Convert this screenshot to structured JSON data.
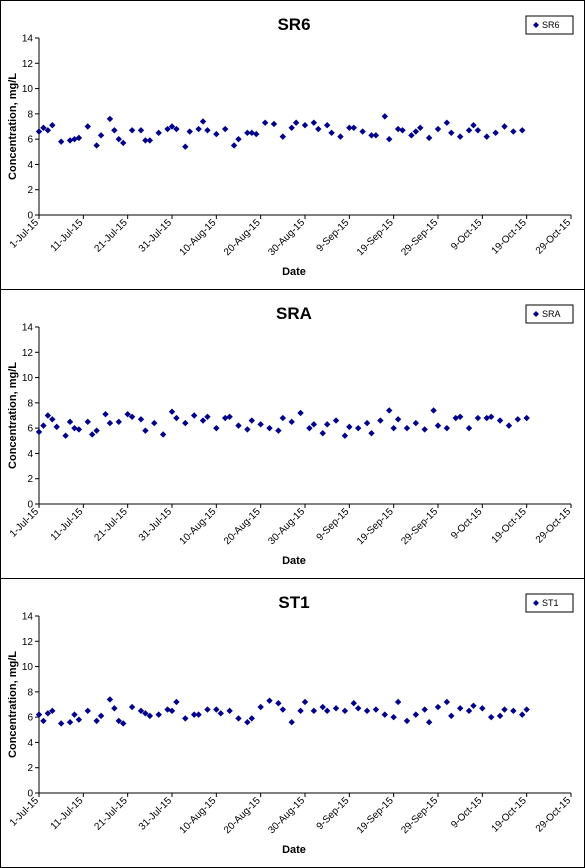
{
  "chart_data": [
    {
      "type": "scatter",
      "title": "SR6",
      "xlabel": "Date",
      "ylabel": "Concentration, mg/L",
      "ylim": [
        0,
        14
      ],
      "yticks": [
        "0",
        "2",
        "4",
        "6",
        "8",
        "10",
        "12",
        "14"
      ],
      "xlim": [
        "2015-07-01",
        "2015-10-29"
      ],
      "xticks": [
        "1-Jul-15",
        "11-Jul-15",
        "21-Jul-15",
        "31-Jul-15",
        "10-Aug-15",
        "20-Aug-15",
        "30-Aug-15",
        "9-Sep-15",
        "19-Sep-15",
        "29-Sep-15",
        "9-Oct-15",
        "19-Oct-15",
        "29-Oct-15"
      ],
      "grid": false,
      "legend_position": "top-right",
      "marker_color": "#00008B",
      "series": [
        {
          "name": "SR6",
          "x": [
            "2015-07-01",
            "2015-07-02",
            "2015-07-03",
            "2015-07-04",
            "2015-07-06",
            "2015-07-08",
            "2015-07-09",
            "2015-07-10",
            "2015-07-12",
            "2015-07-14",
            "2015-07-15",
            "2015-07-17",
            "2015-07-18",
            "2015-07-19",
            "2015-07-20",
            "2015-07-22",
            "2015-07-24",
            "2015-07-25",
            "2015-07-26",
            "2015-07-28",
            "2015-07-30",
            "2015-07-31",
            "2015-08-01",
            "2015-08-03",
            "2015-08-04",
            "2015-08-06",
            "2015-08-07",
            "2015-08-08",
            "2015-08-10",
            "2015-08-12",
            "2015-08-14",
            "2015-08-15",
            "2015-08-17",
            "2015-08-18",
            "2015-08-19",
            "2015-08-21",
            "2015-08-23",
            "2015-08-25",
            "2015-08-27",
            "2015-08-28",
            "2015-08-30",
            "2015-09-01",
            "2015-09-02",
            "2015-09-04",
            "2015-09-05",
            "2015-09-07",
            "2015-09-09",
            "2015-09-10",
            "2015-09-12",
            "2015-09-14",
            "2015-09-15",
            "2015-09-17",
            "2015-09-18",
            "2015-09-20",
            "2015-09-21",
            "2015-09-23",
            "2015-09-24",
            "2015-09-25",
            "2015-09-27",
            "2015-09-29",
            "2015-10-01",
            "2015-10-02",
            "2015-10-04",
            "2015-10-06",
            "2015-10-07",
            "2015-10-08",
            "2015-10-10",
            "2015-10-12",
            "2015-10-14",
            "2015-10-16",
            "2015-10-18"
          ],
          "y": [
            6.6,
            6.9,
            6.7,
            7.1,
            5.8,
            5.9,
            6.0,
            6.1,
            7.0,
            5.5,
            6.3,
            7.6,
            6.7,
            6.0,
            5.7,
            6.7,
            6.7,
            5.9,
            5.9,
            6.5,
            6.8,
            7.0,
            6.8,
            5.4,
            6.6,
            6.8,
            7.4,
            6.7,
            6.4,
            6.8,
            5.5,
            6.0,
            6.5,
            6.5,
            6.4,
            7.3,
            7.2,
            6.2,
            6.9,
            7.3,
            7.1,
            7.3,
            6.8,
            7.1,
            6.5,
            6.2,
            6.9,
            6.9,
            6.6,
            6.3,
            6.3,
            7.8,
            6.0,
            6.8,
            6.7,
            6.3,
            6.6,
            6.9,
            6.1,
            6.8,
            7.3,
            6.5,
            6.2,
            6.7,
            7.1,
            6.7,
            6.2,
            6.5,
            7.0,
            6.6,
            6.7
          ]
        }
      ]
    },
    {
      "type": "scatter",
      "title": "SRA",
      "xlabel": "Date",
      "ylabel": "Concentration, mg/L",
      "ylim": [
        0,
        14
      ],
      "yticks": [
        "0",
        "2",
        "4",
        "6",
        "8",
        "10",
        "12",
        "14"
      ],
      "xlim": [
        "2015-07-01",
        "2015-10-29"
      ],
      "xticks": [
        "1-Jul-15",
        "11-Jul-15",
        "21-Jul-15",
        "31-Jul-15",
        "10-Aug-15",
        "20-Aug-15",
        "30-Aug-15",
        "9-Sep-15",
        "19-Sep-15",
        "29-Sep-15",
        "9-Oct-15",
        "19-Oct-15",
        "29-Oct-15"
      ],
      "grid": false,
      "legend_position": "top-right",
      "marker_color": "#00008B",
      "series": [
        {
          "name": "SRA",
          "x": [
            "2015-07-01",
            "2015-07-02",
            "2015-07-03",
            "2015-07-04",
            "2015-07-05",
            "2015-07-07",
            "2015-07-08",
            "2015-07-09",
            "2015-07-10",
            "2015-07-12",
            "2015-07-13",
            "2015-07-14",
            "2015-07-16",
            "2015-07-17",
            "2015-07-19",
            "2015-07-21",
            "2015-07-22",
            "2015-07-24",
            "2015-07-25",
            "2015-07-27",
            "2015-07-29",
            "2015-07-31",
            "2015-08-01",
            "2015-08-03",
            "2015-08-05",
            "2015-08-07",
            "2015-08-08",
            "2015-08-10",
            "2015-08-12",
            "2015-08-13",
            "2015-08-15",
            "2015-08-17",
            "2015-08-18",
            "2015-08-20",
            "2015-08-22",
            "2015-08-24",
            "2015-08-25",
            "2015-08-27",
            "2015-08-29",
            "2015-08-31",
            "2015-09-01",
            "2015-09-03",
            "2015-09-04",
            "2015-09-06",
            "2015-09-08",
            "2015-09-09",
            "2015-09-11",
            "2015-09-13",
            "2015-09-14",
            "2015-09-16",
            "2015-09-18",
            "2015-09-19",
            "2015-09-20",
            "2015-09-22",
            "2015-09-24",
            "2015-09-26",
            "2015-09-28",
            "2015-09-29",
            "2015-10-01",
            "2015-10-03",
            "2015-10-04",
            "2015-10-06",
            "2015-10-08",
            "2015-10-10",
            "2015-10-11",
            "2015-10-13",
            "2015-10-15",
            "2015-10-17",
            "2015-10-19"
          ],
          "y": [
            5.7,
            6.2,
            7.0,
            6.7,
            6.1,
            5.4,
            6.5,
            6.0,
            5.9,
            6.5,
            5.5,
            5.8,
            7.1,
            6.4,
            6.5,
            7.1,
            6.9,
            6.7,
            5.8,
            6.4,
            5.5,
            7.3,
            6.8,
            6.4,
            7.0,
            6.6,
            6.9,
            6.0,
            6.8,
            6.9,
            6.2,
            5.9,
            6.6,
            6.3,
            6.0,
            5.8,
            6.8,
            6.5,
            7.2,
            6.0,
            6.3,
            5.6,
            6.3,
            6.6,
            5.4,
            6.1,
            6.0,
            6.4,
            5.6,
            6.6,
            7.4,
            6.0,
            6.7,
            6.0,
            6.4,
            5.9,
            7.4,
            6.2,
            6.0,
            6.8,
            6.9,
            6.0,
            6.8,
            6.8,
            6.9,
            6.6,
            6.2,
            6.7,
            6.8
          ]
        }
      ]
    },
    {
      "type": "scatter",
      "title": "ST1",
      "xlabel": "Date",
      "ylabel": "Concentration, mg/L",
      "ylim": [
        0,
        14
      ],
      "yticks": [
        "0",
        "2",
        "4",
        "6",
        "8",
        "10",
        "12",
        "14"
      ],
      "xlim": [
        "2015-07-01",
        "2015-10-29"
      ],
      "xticks": [
        "1-Jul-15",
        "11-Jul-15",
        "21-Jul-15",
        "31-Jul-15",
        "10-Aug-15",
        "20-Aug-15",
        "30-Aug-15",
        "9-Sep-15",
        "19-Sep-15",
        "29-Sep-15",
        "9-Oct-15",
        "19-Oct-15",
        "29-Oct-15"
      ],
      "grid": false,
      "legend_position": "top-right",
      "marker_color": "#00008B",
      "series": [
        {
          "name": "ST1",
          "x": [
            "2015-07-01",
            "2015-07-02",
            "2015-07-03",
            "2015-07-04",
            "2015-07-06",
            "2015-07-08",
            "2015-07-09",
            "2015-07-10",
            "2015-07-12",
            "2015-07-14",
            "2015-07-15",
            "2015-07-17",
            "2015-07-18",
            "2015-07-19",
            "2015-07-20",
            "2015-07-22",
            "2015-07-24",
            "2015-07-25",
            "2015-07-26",
            "2015-07-28",
            "2015-07-30",
            "2015-07-31",
            "2015-08-01",
            "2015-08-03",
            "2015-08-05",
            "2015-08-06",
            "2015-08-08",
            "2015-08-10",
            "2015-08-11",
            "2015-08-13",
            "2015-08-15",
            "2015-08-17",
            "2015-08-18",
            "2015-08-20",
            "2015-08-22",
            "2015-08-24",
            "2015-08-25",
            "2015-08-27",
            "2015-08-29",
            "2015-08-30",
            "2015-09-01",
            "2015-09-03",
            "2015-09-04",
            "2015-09-06",
            "2015-09-08",
            "2015-09-10",
            "2015-09-11",
            "2015-09-13",
            "2015-09-15",
            "2015-09-17",
            "2015-09-19",
            "2015-09-20",
            "2015-09-22",
            "2015-09-24",
            "2015-09-26",
            "2015-09-27",
            "2015-09-29",
            "2015-10-01",
            "2015-10-02",
            "2015-10-04",
            "2015-10-06",
            "2015-10-07",
            "2015-10-09",
            "2015-10-11",
            "2015-10-13",
            "2015-10-14",
            "2015-10-16",
            "2015-10-18",
            "2015-10-19"
          ],
          "y": [
            6.2,
            5.7,
            6.3,
            6.5,
            5.5,
            5.6,
            6.2,
            5.8,
            6.5,
            5.7,
            6.1,
            7.4,
            6.7,
            5.7,
            5.5,
            6.8,
            6.5,
            6.3,
            6.1,
            6.2,
            6.6,
            6.5,
            7.2,
            5.9,
            6.2,
            6.2,
            6.6,
            6.6,
            6.3,
            6.5,
            5.9,
            5.6,
            5.9,
            6.8,
            7.3,
            7.1,
            6.6,
            5.6,
            6.5,
            7.2,
            6.5,
            6.8,
            6.5,
            6.7,
            6.5,
            7.1,
            6.7,
            6.5,
            6.6,
            6.2,
            6.0,
            7.2,
            5.7,
            6.2,
            6.6,
            5.6,
            6.8,
            7.2,
            6.1,
            6.7,
            6.5,
            6.9,
            6.7,
            6.0,
            6.1,
            6.6,
            6.5,
            6.2,
            6.6
          ]
        }
      ]
    }
  ]
}
